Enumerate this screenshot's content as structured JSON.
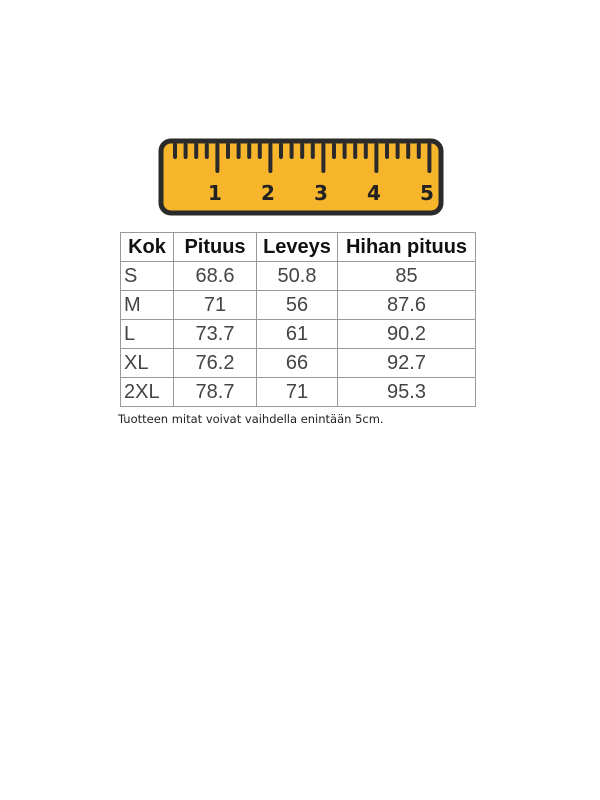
{
  "ruler": {
    "labels": [
      "1",
      "2",
      "3",
      "4",
      "5"
    ]
  },
  "table": {
    "headers": [
      "Kok",
      "Pituus",
      "Leveys",
      "Hihan pituus"
    ],
    "rows": [
      [
        "S",
        "68.6",
        "50.8",
        "85"
      ],
      [
        "M",
        "71",
        "56",
        "87.6"
      ],
      [
        "L",
        "73.7",
        "61",
        "90.2"
      ],
      [
        "XL",
        "76.2",
        "66",
        "92.7"
      ],
      [
        "2XL",
        "78.7",
        "71",
        "95.3"
      ]
    ]
  },
  "note": "Tuotteen mitat voivat vaihdella enintään 5cm."
}
